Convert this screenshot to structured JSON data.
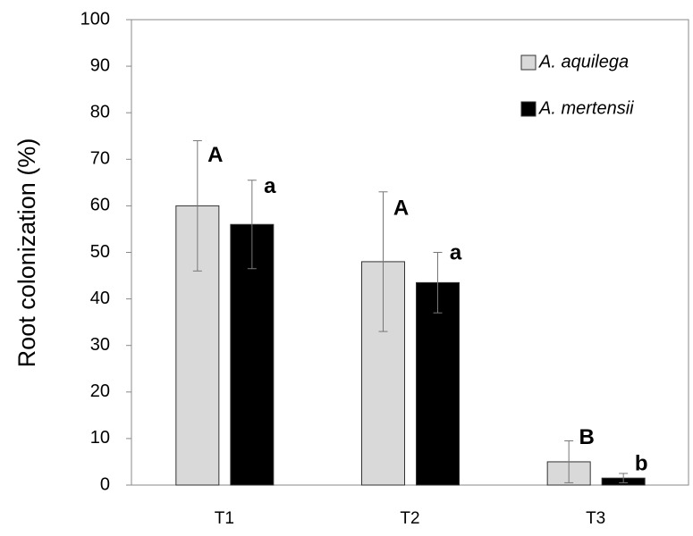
{
  "chart_data": {
    "type": "bar",
    "y_label": "Root colonization (%)",
    "categories": [
      "T1",
      "T2",
      "T3"
    ],
    "series": [
      {
        "name": "A. aquilega",
        "color": "#d9d9d9",
        "values": [
          60,
          48,
          5
        ],
        "errors": [
          14,
          15,
          4.5
        ],
        "letters": [
          "A",
          "A",
          "B"
        ]
      },
      {
        "name": "A. mertensii",
        "color": "#000000",
        "values": [
          56,
          43.5,
          1.5
        ],
        "errors": [
          9.5,
          6.5,
          1
        ],
        "letters": [
          "a",
          "a",
          "b"
        ]
      }
    ],
    "ylim": [
      0,
      100
    ],
    "yticks": [
      0,
      10,
      20,
      30,
      40,
      50,
      60,
      70,
      80,
      90,
      100
    ],
    "grid": false,
    "legend": "top-right"
  }
}
